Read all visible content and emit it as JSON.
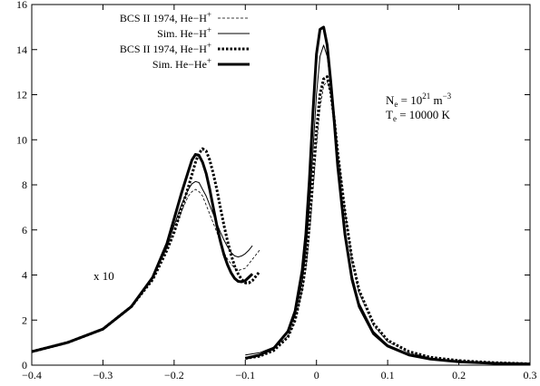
{
  "chart_data": {
    "type": "line",
    "xlim": [
      -0.4,
      0.3
    ],
    "ylim": [
      0,
      16
    ],
    "x_ticks": [
      -0.4,
      -0.3,
      -0.2,
      -0.1,
      0,
      0.1,
      0.2,
      0.3
    ],
    "x_tick_labels": [
      "−0.4",
      "−0.3",
      "−0.2",
      "−0.1",
      "0",
      "0.1",
      "0.2",
      "0.3"
    ],
    "y_ticks": [
      0,
      2,
      4,
      6,
      8,
      10,
      12,
      14,
      16
    ],
    "y_tick_labels": [
      "0",
      "2",
      "4",
      "6",
      "8",
      "10",
      "12",
      "14",
      "16"
    ],
    "grid": false,
    "legend_position": "top-left",
    "legend": [
      {
        "prefix": "BCS II 1974, He−H",
        "sup": "+",
        "style": "thin-dashed"
      },
      {
        "prefix": "Sim. He−H",
        "sup": "+",
        "style": "thin-solid"
      },
      {
        "prefix": "BCS II 1974, He−H",
        "sup": "+",
        "style": "thick-dotted"
      },
      {
        "prefix": "Sim. He−He",
        "sup": "+",
        "style": "thick-solid"
      }
    ],
    "annotations": {
      "ne": {
        "base": "N",
        "sub": "e",
        "mid": " = 10",
        "sup": "21",
        "tail": " m",
        "sup2": "−3"
      },
      "te": {
        "base": "T",
        "sub": "e",
        "mid": " = 10000 K"
      },
      "x10": "x 10"
    },
    "series": [
      {
        "style": "thin-dashed",
        "x": [
          -0.4,
          -0.35,
          -0.3,
          -0.26,
          -0.23,
          -0.21,
          -0.2,
          -0.19,
          -0.18,
          -0.175,
          -0.17,
          -0.165,
          -0.16,
          -0.155,
          -0.15,
          -0.145,
          -0.14,
          -0.135,
          -0.13,
          -0.125,
          -0.12,
          -0.115,
          -0.11,
          -0.105,
          -0.1,
          -0.095,
          -0.09,
          -0.085,
          -0.08,
          null,
          -0.1,
          -0.08,
          -0.06,
          -0.04,
          -0.03,
          -0.02,
          -0.015,
          -0.01,
          -0.005,
          0,
          0.005,
          0.01,
          0.015,
          0.02,
          0.025,
          0.03,
          0.04,
          0.05,
          0.06,
          0.08,
          0.1,
          0.13,
          0.16,
          0.2,
          0.25,
          0.3
        ],
        "y": [
          0.6,
          1.0,
          1.6,
          2.6,
          3.9,
          5.2,
          6.0,
          6.8,
          7.5,
          7.7,
          7.8,
          7.7,
          7.5,
          7.1,
          6.7,
          6.3,
          5.9,
          5.4,
          5.0,
          4.7,
          4.5,
          4.3,
          4.2,
          4.25,
          4.3,
          4.5,
          4.7,
          4.9,
          5.1,
          null,
          0.35,
          0.45,
          0.7,
          1.3,
          2.0,
          3.3,
          4.3,
          5.8,
          7.7,
          9.7,
          11.4,
          12.4,
          12.6,
          12.1,
          11.0,
          9.5,
          6.8,
          4.6,
          3.2,
          1.75,
          1.05,
          0.55,
          0.32,
          0.18,
          0.1,
          0.06
        ]
      },
      {
        "style": "thin-solid",
        "x": [
          -0.4,
          -0.35,
          -0.3,
          -0.26,
          -0.23,
          -0.21,
          -0.2,
          -0.19,
          -0.18,
          -0.175,
          -0.17,
          -0.165,
          -0.16,
          -0.155,
          -0.15,
          -0.145,
          -0.14,
          -0.135,
          -0.13,
          -0.125,
          -0.12,
          -0.115,
          -0.11,
          -0.105,
          -0.1,
          -0.095,
          -0.09,
          null,
          -0.1,
          -0.08,
          -0.06,
          -0.04,
          -0.03,
          -0.02,
          -0.015,
          -0.01,
          -0.005,
          0,
          0.005,
          0.01,
          0.015,
          0.02,
          0.025,
          0.03,
          0.04,
          0.05,
          0.06,
          0.08,
          0.1,
          0.13,
          0.16,
          0.2,
          0.25,
          0.3
        ],
        "y": [
          0.6,
          1.0,
          1.6,
          2.6,
          3.9,
          5.3,
          6.2,
          7.1,
          7.8,
          8.05,
          8.15,
          8.1,
          7.8,
          7.5,
          7.1,
          6.7,
          6.3,
          5.9,
          5.55,
          5.25,
          5.0,
          4.85,
          4.8,
          4.85,
          4.95,
          5.1,
          5.3,
          null,
          0.45,
          0.55,
          0.8,
          1.45,
          2.2,
          3.7,
          5.0,
          7.0,
          9.5,
          12.0,
          13.7,
          14.2,
          13.7,
          12.4,
          10.8,
          9.0,
          6.0,
          4.0,
          2.75,
          1.5,
          0.9,
          0.5,
          0.3,
          0.17,
          0.09,
          0.05
        ]
      },
      {
        "style": "thick-dotted",
        "x": [
          -0.4,
          -0.35,
          -0.3,
          -0.26,
          -0.23,
          -0.21,
          -0.2,
          -0.19,
          -0.18,
          -0.17,
          -0.165,
          -0.16,
          -0.155,
          -0.15,
          -0.145,
          -0.14,
          -0.135,
          -0.13,
          -0.125,
          -0.12,
          -0.115,
          -0.11,
          -0.105,
          -0.1,
          -0.095,
          -0.09,
          -0.085,
          -0.08,
          null,
          -0.1,
          -0.08,
          -0.06,
          -0.04,
          -0.03,
          -0.02,
          -0.015,
          -0.01,
          -0.005,
          0,
          0.005,
          0.01,
          0.015,
          0.02,
          0.025,
          0.03,
          0.04,
          0.05,
          0.06,
          0.08,
          0.1,
          0.13,
          0.16,
          0.2,
          0.25,
          0.3
        ],
        "y": [
          0.6,
          1.0,
          1.6,
          2.6,
          3.8,
          5.1,
          5.9,
          6.9,
          7.9,
          9.0,
          9.4,
          9.6,
          9.5,
          9.1,
          8.5,
          7.8,
          7.0,
          6.2,
          5.5,
          4.9,
          4.4,
          4.05,
          3.8,
          3.65,
          3.65,
          3.75,
          3.95,
          4.15,
          null,
          0.3,
          0.4,
          0.65,
          1.25,
          2.0,
          3.4,
          4.5,
          6.2,
          8.3,
          10.4,
          12.0,
          12.7,
          12.8,
          12.1,
          10.9,
          9.4,
          6.8,
          4.7,
          3.3,
          1.85,
          1.1,
          0.6,
          0.35,
          0.2,
          0.11,
          0.06
        ]
      },
      {
        "style": "thick-solid",
        "x": [
          -0.4,
          -0.35,
          -0.3,
          -0.26,
          -0.23,
          -0.21,
          -0.2,
          -0.19,
          -0.18,
          -0.175,
          -0.17,
          -0.165,
          -0.16,
          -0.155,
          -0.15,
          -0.145,
          -0.14,
          -0.135,
          -0.13,
          -0.125,
          -0.12,
          -0.115,
          -0.11,
          -0.105,
          -0.1,
          -0.095,
          -0.09,
          null,
          -0.1,
          -0.08,
          -0.06,
          -0.04,
          -0.03,
          -0.02,
          -0.015,
          -0.01,
          -0.005,
          0,
          0.005,
          0.01,
          0.015,
          0.02,
          0.025,
          0.03,
          0.04,
          0.05,
          0.06,
          0.08,
          0.1,
          0.13,
          0.16,
          0.2,
          0.25,
          0.3
        ],
        "y": [
          0.6,
          1.0,
          1.6,
          2.6,
          3.9,
          5.4,
          6.5,
          7.6,
          8.6,
          9.1,
          9.35,
          9.3,
          9.0,
          8.5,
          7.8,
          7.0,
          6.2,
          5.5,
          4.9,
          4.45,
          4.1,
          3.85,
          3.72,
          3.7,
          3.75,
          3.9,
          4.05,
          null,
          0.3,
          0.45,
          0.75,
          1.5,
          2.4,
          4.2,
          5.8,
          8.2,
          11.2,
          13.8,
          14.9,
          15.0,
          14.2,
          12.6,
          10.8,
          8.8,
          5.8,
          3.8,
          2.6,
          1.4,
          0.85,
          0.45,
          0.27,
          0.15,
          0.08,
          0.05
        ]
      }
    ]
  }
}
